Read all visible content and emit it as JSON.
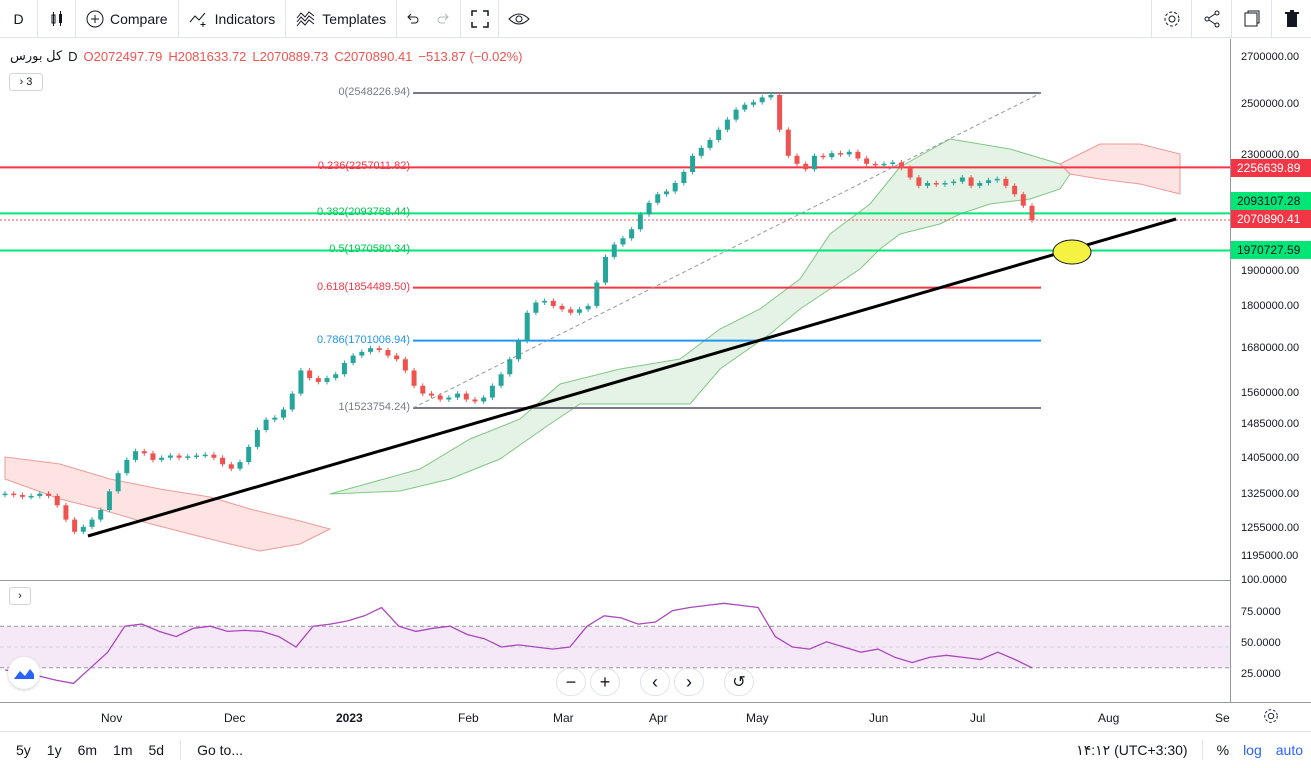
{
  "toolbar": {
    "interval": "D",
    "compare": "Compare",
    "indicators": "Indicators",
    "templates": "Templates"
  },
  "legend": {
    "symbol": "کل بورس",
    "interval": "D",
    "open": "O2072497.79",
    "high": "H2081633.72",
    "low": "L2070889.73",
    "close": "C2070890.41",
    "change": "−513.87 (−0.02%)",
    "indicator_count": "3"
  },
  "fib_levels": [
    {
      "label": "0(2548226.94)",
      "color": "#787b86"
    },
    {
      "label": "0.236(2257011.82)",
      "color": "#f23645"
    },
    {
      "label": "0.382(2093768.44)",
      "color": "#00e676"
    },
    {
      "label": "0.5(1970580.34)",
      "color": "#00e676"
    },
    {
      "label": "0.618(1854489.50)",
      "color": "#f23645"
    },
    {
      "label": "0.786(1701006.94)",
      "color": "#2196f3"
    },
    {
      "label": "1(1523754.24)",
      "color": "#787b86"
    }
  ],
  "price_scale": [
    "2700000.00",
    "2500000.00",
    "2300000.00",
    "1900000.00",
    "1800000.00",
    "1680000.00",
    "1560000.00",
    "1485000.00",
    "1405000.00",
    "1325000.00",
    "1255000.00",
    "1195000.00"
  ],
  "price_tags": [
    {
      "text": "2256639.89",
      "bg": "#f23645",
      "fg": "#ffffff"
    },
    {
      "text": "2093107.28",
      "bg": "#00e676",
      "fg": "#131722"
    },
    {
      "text": "2070890.41",
      "bg": "#f23645",
      "fg": "#ffffff"
    },
    {
      "text": "1970727.59",
      "bg": "#00e676",
      "fg": "#131722"
    }
  ],
  "rsi_scale": [
    "100.0000",
    "75.0000",
    "50.0000",
    "25.0000"
  ],
  "time_axis": [
    "Nov",
    "Dec",
    "2023",
    "Feb",
    "Mar",
    "Apr",
    "May",
    "Jun",
    "Jul",
    "Aug",
    "Se"
  ],
  "bottom": {
    "ranges": [
      "5y",
      "1y",
      "6m",
      "1m",
      "5d"
    ],
    "goto": "Go to...",
    "time": "۱۴:۱۲ (UTC+3:30)",
    "percent": "%",
    "log": "log",
    "auto": "auto"
  },
  "colors": {
    "up": "#26a69a",
    "down": "#ef5350",
    "rsi": "#ab47bc",
    "trend": "#000000"
  },
  "chart_data": {
    "type": "candlestick",
    "price_axis_type": "log",
    "ohlc_last": {
      "open": 2072497.79,
      "high": 2081633.72,
      "low": 2070889.73,
      "close": 2070890.41
    },
    "close_series": [
      1325000,
      1322000,
      1318000,
      1320000,
      1325000,
      1320000,
      1300000,
      1270000,
      1245000,
      1255000,
      1270000,
      1290000,
      1330000,
      1370000,
      1400000,
      1420000,
      1415000,
      1400000,
      1405000,
      1410000,
      1405000,
      1408000,
      1410000,
      1412000,
      1405000,
      1390000,
      1380000,
      1395000,
      1430000,
      1470000,
      1495000,
      1500000,
      1520000,
      1560000,
      1620000,
      1600000,
      1590000,
      1600000,
      1610000,
      1640000,
      1660000,
      1670000,
      1680000,
      1675000,
      1660000,
      1650000,
      1620000,
      1580000,
      1560000,
      1555000,
      1545000,
      1550000,
      1560000,
      1545000,
      1540000,
      1550000,
      1580000,
      1610000,
      1650000,
      1700000,
      1780000,
      1810000,
      1815000,
      1800000,
      1790000,
      1780000,
      1790000,
      1800000,
      1870000,
      1950000,
      1990000,
      2010000,
      2040000,
      2090000,
      2130000,
      2160000,
      2170000,
      2200000,
      2240000,
      2300000,
      2330000,
      2360000,
      2400000,
      2440000,
      2480000,
      2500000,
      2510000,
      2530000,
      2540000,
      2400000,
      2300000,
      2270000,
      2250000,
      2300000,
      2295000,
      2310000,
      2305000,
      2315000,
      2290000,
      2270000,
      2265000,
      2270000,
      2275000,
      2255000,
      2220000,
      2190000,
      2200000,
      2195000,
      2200000,
      2205000,
      2220000,
      2190000,
      2200000,
      2210000,
      2215000,
      2190000,
      2160000,
      2120000,
      2070890
    ],
    "fib_retracement": [
      {
        "level": 0,
        "value": 2548226.94
      },
      {
        "level": 0.236,
        "value": 2257011.82
      },
      {
        "level": 0.382,
        "value": 2093768.44
      },
      {
        "level": 0.5,
        "value": 1970580.34
      },
      {
        "level": 0.618,
        "value": 1854489.5
      },
      {
        "level": 0.786,
        "value": 1701006.94
      },
      {
        "level": 1,
        "value": 1523754.24
      }
    ],
    "rsi_series": [
      28,
      25,
      22,
      18,
      15,
      30,
      45,
      70,
      72,
      65,
      60,
      68,
      70,
      65,
      66,
      65,
      60,
      50,
      70,
      72,
      75,
      80,
      88,
      70,
      65,
      68,
      70,
      62,
      58,
      50,
      52,
      50,
      48,
      50,
      70,
      80,
      78,
      72,
      74,
      85,
      88,
      90,
      92,
      90,
      88,
      60,
      50,
      48,
      55,
      50,
      45,
      48,
      40,
      35,
      40,
      42,
      40,
      38,
      45,
      38,
      30
    ]
  }
}
